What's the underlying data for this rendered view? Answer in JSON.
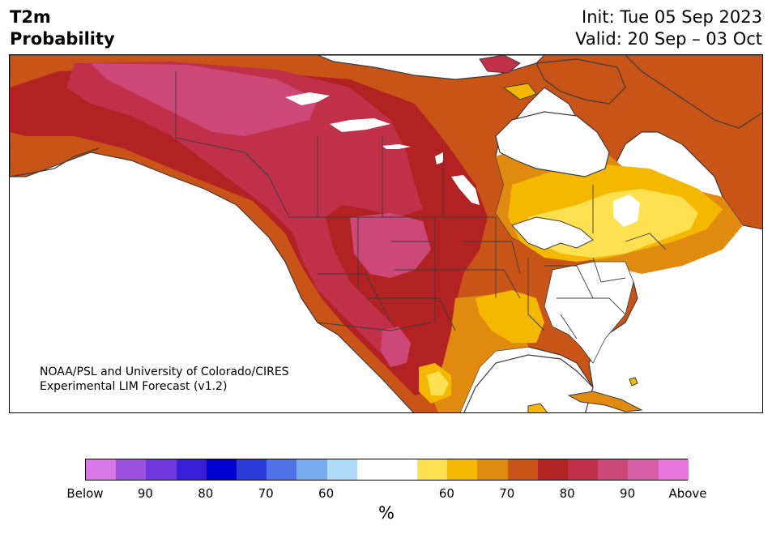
{
  "header": {
    "variable": "T2m",
    "product": "Probability",
    "init": "Init: Tue 05 Sep 2023",
    "valid": "Valid: 20 Sep – 03 Oct"
  },
  "credit": {
    "line1": "NOAA/PSL and University of Colorado/CIRES",
    "line2": "Experimental LIM Forecast (v1.2)"
  },
  "colorbar": {
    "unit": "%",
    "tick_labels": [
      "Below",
      "90",
      "80",
      "70",
      "60",
      "60",
      "70",
      "80",
      "90",
      "Above"
    ],
    "colors": [
      "#d878e8",
      "#9b50e0",
      "#6e36dc",
      "#3a1dd8",
      "#0000d0",
      "#2a3ad8",
      "#4f72e8",
      "#78aef0",
      "#b0dcfa",
      "#ffffff",
      "#ffffff",
      "#ffe050",
      "#f4b800",
      "#e08a10",
      "#c85418",
      "#b22222",
      "#c03048",
      "#cc4878",
      "#d860a8",
      "#e878e0"
    ]
  },
  "map": {
    "region": "North America",
    "legend_colors": {
      "above_60": "#ffe050",
      "above_65": "#f4b800",
      "above_70": "#e08a10",
      "above_75": "#c85418",
      "above_80": "#b22222",
      "above_85": "#c03048",
      "above_90": "#cc4878",
      "near_normal": "#ffffff",
      "water": "#ffffff",
      "boundaries": "#3c3c3c"
    }
  }
}
